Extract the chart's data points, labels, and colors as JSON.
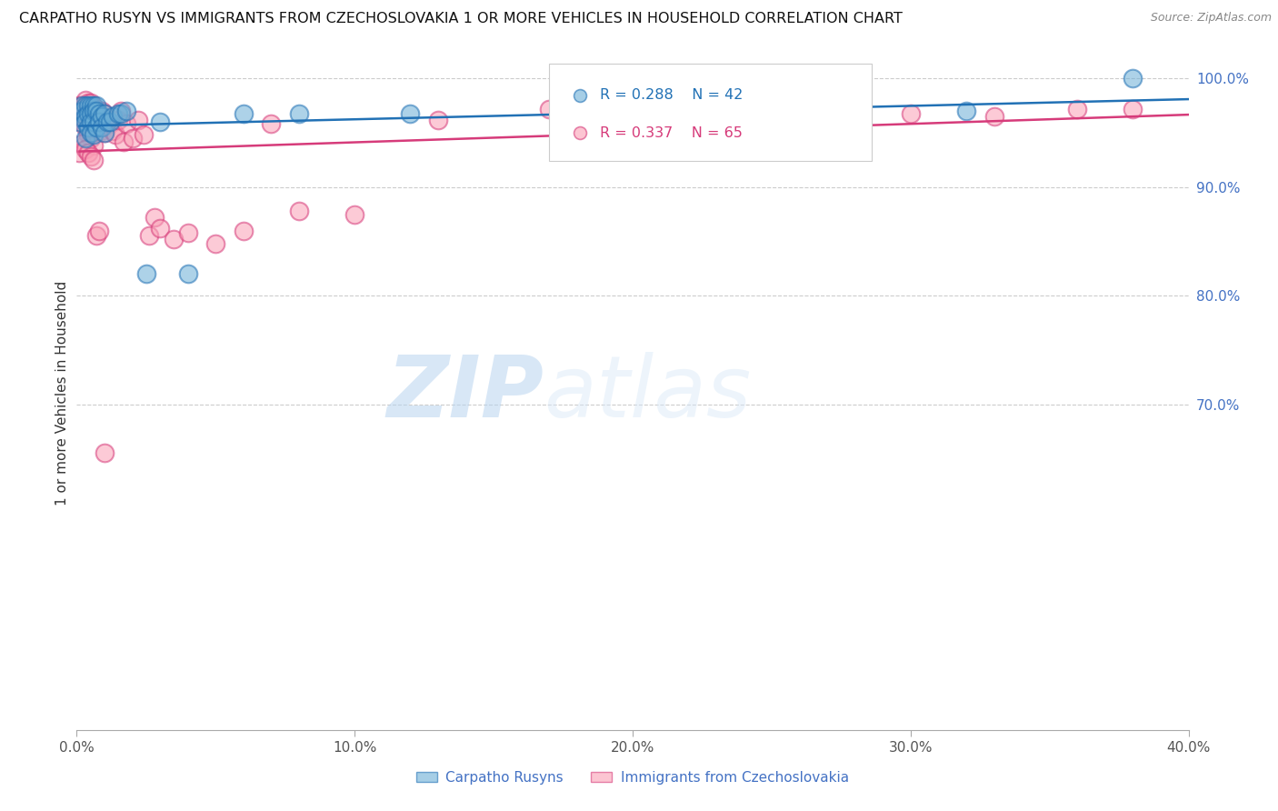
{
  "title": "CARPATHO RUSYN VS IMMIGRANTS FROM CZECHOSLOVAKIA 1 OR MORE VEHICLES IN HOUSEHOLD CORRELATION CHART",
  "source": "Source: ZipAtlas.com",
  "ylabel": "1 or more Vehicles in Household",
  "legend_blue_r": "R = 0.288",
  "legend_blue_n": "N = 42",
  "legend_pink_r": "R = 0.337",
  "legend_pink_n": "N = 65",
  "legend_label_blue": "Carpatho Rusyns",
  "legend_label_pink": "Immigrants from Czechoslovakia",
  "watermark_zip": "ZIP",
  "watermark_atlas": "atlas",
  "blue_color": "#6baed6",
  "pink_color": "#fa9fb5",
  "line_blue_color": "#2171b5",
  "line_pink_color": "#d63b7a",
  "ytick_color": "#4472c4",
  "blue_scatter_x": [
    0.001,
    0.002,
    0.002,
    0.003,
    0.003,
    0.003,
    0.003,
    0.004,
    0.004,
    0.004,
    0.005,
    0.005,
    0.005,
    0.005,
    0.006,
    0.006,
    0.006,
    0.006,
    0.007,
    0.007,
    0.007,
    0.008,
    0.008,
    0.009,
    0.009,
    0.01,
    0.01,
    0.011,
    0.012,
    0.013,
    0.015,
    0.016,
    0.018,
    0.025,
    0.03,
    0.04,
    0.06,
    0.08,
    0.12,
    0.2,
    0.32,
    0.38
  ],
  "blue_scatter_y": [
    0.96,
    0.975,
    0.97,
    0.975,
    0.965,
    0.96,
    0.945,
    0.975,
    0.968,
    0.955,
    0.975,
    0.968,
    0.96,
    0.95,
    0.975,
    0.97,
    0.96,
    0.948,
    0.975,
    0.97,
    0.955,
    0.968,
    0.96,
    0.965,
    0.955,
    0.968,
    0.95,
    0.96,
    0.96,
    0.965,
    0.968,
    0.968,
    0.97,
    0.82,
    0.96,
    0.82,
    0.968,
    0.968,
    0.968,
    0.968,
    0.97,
    1.0
  ],
  "pink_scatter_x": [
    0.001,
    0.002,
    0.002,
    0.003,
    0.003,
    0.003,
    0.003,
    0.004,
    0.004,
    0.004,
    0.005,
    0.005,
    0.005,
    0.005,
    0.006,
    0.006,
    0.006,
    0.006,
    0.007,
    0.007,
    0.008,
    0.008,
    0.009,
    0.009,
    0.01,
    0.01,
    0.011,
    0.012,
    0.013,
    0.014,
    0.015,
    0.016,
    0.017,
    0.018,
    0.02,
    0.022,
    0.024,
    0.026,
    0.028,
    0.03,
    0.035,
    0.04,
    0.05,
    0.06,
    0.07,
    0.08,
    0.1,
    0.13,
    0.17,
    0.2,
    0.24,
    0.27,
    0.3,
    0.33,
    0.36,
    0.38,
    0.001,
    0.002,
    0.003,
    0.004,
    0.005,
    0.006,
    0.007,
    0.008,
    0.01
  ],
  "pink_scatter_y": [
    0.975,
    0.975,
    0.96,
    0.98,
    0.965,
    0.955,
    0.94,
    0.978,
    0.965,
    0.948,
    0.978,
    0.97,
    0.958,
    0.945,
    0.972,
    0.962,
    0.95,
    0.938,
    0.972,
    0.955,
    0.968,
    0.952,
    0.97,
    0.952,
    0.968,
    0.95,
    0.962,
    0.958,
    0.952,
    0.948,
    0.962,
    0.97,
    0.942,
    0.958,
    0.945,
    0.962,
    0.948,
    0.855,
    0.872,
    0.862,
    0.852,
    0.858,
    0.848,
    0.86,
    0.958,
    0.878,
    0.875,
    0.962,
    0.972,
    0.965,
    0.968,
    0.972,
    0.968,
    0.965,
    0.972,
    0.972,
    0.932,
    0.94,
    0.935,
    0.932,
    0.928,
    0.925,
    0.855,
    0.86,
    0.655
  ],
  "xlim": [
    0.0,
    0.4
  ],
  "ylim": [
    0.4,
    1.02
  ],
  "yticks": [
    1.0,
    0.9,
    0.8,
    0.7
  ],
  "ytick_labels": [
    "100.0%",
    "90.0%",
    "80.0%",
    "70.0%"
  ],
  "xticks": [
    0.0,
    0.1,
    0.2,
    0.3,
    0.4
  ],
  "xtick_labels": [
    "0.0%",
    "10.0%",
    "20.0%",
    "30.0%",
    "40.0%"
  ],
  "figsize": [
    14.06,
    8.92
  ],
  "dpi": 100
}
